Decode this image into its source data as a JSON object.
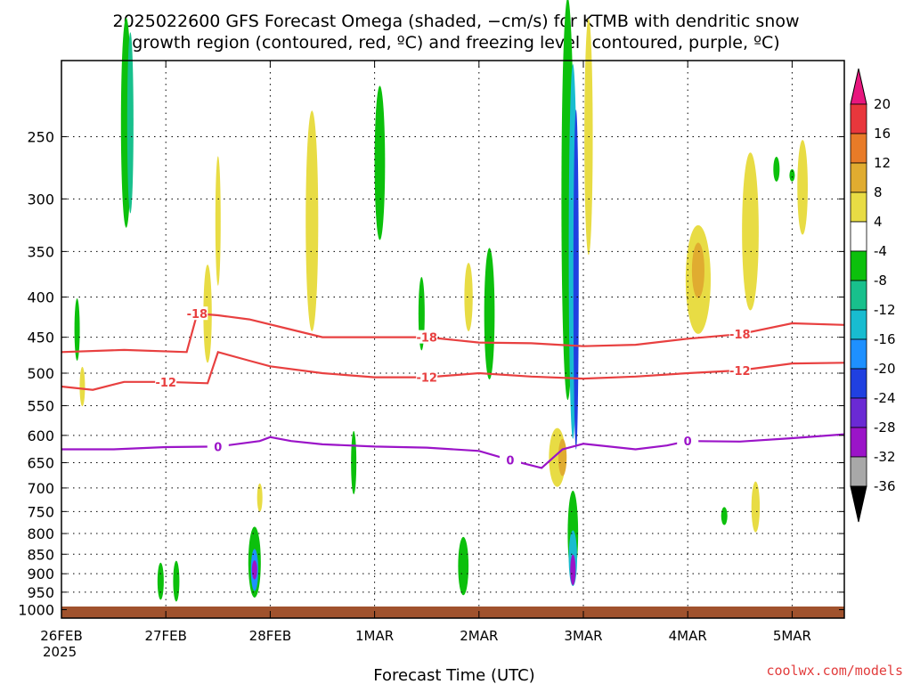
{
  "title_line1": "2025022600 GFS Forecast Omega (shaded, −cm/s) for KTMB with dendritic snow",
  "title_line2": "growth region (contoured, red, ºC) and freezing level (contoured, purple, ºC)",
  "xlabel": "Forecast Time (UTC)",
  "year_label": "2025",
  "credit": "coolwx.com/models",
  "chart_data": {
    "type": "heatmap",
    "x_ticks": [
      "26FEB",
      "27FEB",
      "28FEB",
      "1MAR",
      "2MAR",
      "3MAR",
      "4MAR",
      "5MAR"
    ],
    "x_range_days": [
      0,
      7.5
    ],
    "y_ticks": [
      250,
      300,
      350,
      400,
      450,
      500,
      550,
      600,
      650,
      700,
      750,
      800,
      850,
      900,
      950,
      1000
    ],
    "y_range_hpa": [
      200,
      1025
    ],
    "y_scale": "log-pressure",
    "grid": true,
    "colorbar": {
      "ticks": [
        "20",
        "16",
        "12",
        "8",
        "4",
        "-4",
        "-8",
        "-12",
        "-16",
        "-20",
        "-24",
        "-28",
        "-32",
        "-36"
      ],
      "colors": [
        "#e8177e",
        "#e8373c",
        "#e87b28",
        "#e0ac30",
        "#e8dc44",
        "#ffffff",
        "#0cc00c",
        "#18c08c",
        "#18bcd0",
        "#1e90ff",
        "#2040e0",
        "#6a2ad4",
        "#9b14c8",
        "#a8a8a8",
        "#000000"
      ]
    },
    "contours": [
      {
        "label": "-18",
        "color": "#e84040",
        "points": [
          [
            0,
            470
          ],
          [
            0.6,
            467
          ],
          [
            1.2,
            470
          ],
          [
            1.3,
            420
          ],
          [
            1.5,
            422
          ],
          [
            1.8,
            427
          ],
          [
            2.2,
            440
          ],
          [
            2.5,
            450
          ],
          [
            3.0,
            450
          ],
          [
            3.5,
            450
          ],
          [
            4.0,
            457
          ],
          [
            4.5,
            458
          ],
          [
            5.0,
            462
          ],
          [
            5.5,
            460
          ],
          [
            6.0,
            452
          ],
          [
            6.5,
            446
          ],
          [
            7.0,
            432
          ],
          [
            7.5,
            434
          ]
        ]
      },
      {
        "label": "-12",
        "color": "#e84040",
        "points": [
          [
            0,
            520
          ],
          [
            0.3,
            525
          ],
          [
            0.6,
            513
          ],
          [
            1.0,
            513
          ],
          [
            1.4,
            515
          ],
          [
            1.5,
            470
          ],
          [
            1.8,
            482
          ],
          [
            2.0,
            490
          ],
          [
            2.5,
            500
          ],
          [
            3.0,
            506
          ],
          [
            3.5,
            506
          ],
          [
            4.0,
            500
          ],
          [
            4.5,
            505
          ],
          [
            5.0,
            508
          ],
          [
            5.5,
            505
          ],
          [
            6.0,
            500
          ],
          [
            6.5,
            496
          ],
          [
            7.0,
            486
          ],
          [
            7.5,
            485
          ]
        ]
      },
      {
        "label": "0",
        "color": "#9b14c8",
        "points": [
          [
            0,
            625
          ],
          [
            0.5,
            625
          ],
          [
            1.0,
            621
          ],
          [
            1.5,
            620
          ],
          [
            1.9,
            610
          ],
          [
            2.0,
            603
          ],
          [
            2.2,
            610
          ],
          [
            2.5,
            616
          ],
          [
            3.0,
            620
          ],
          [
            3.5,
            622
          ],
          [
            4.0,
            628
          ],
          [
            4.3,
            645
          ],
          [
            4.6,
            660
          ],
          [
            4.8,
            625
          ],
          [
            5.0,
            615
          ],
          [
            5.5,
            625
          ],
          [
            5.8,
            618
          ],
          [
            6.0,
            610
          ],
          [
            6.5,
            611
          ],
          [
            7.0,
            605
          ],
          [
            7.5,
            598
          ]
        ]
      }
    ]
  }
}
